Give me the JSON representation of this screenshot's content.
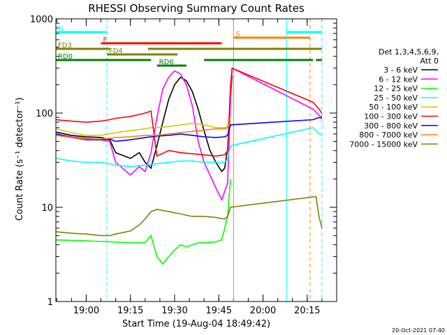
{
  "chart_data": {
    "type": "line",
    "title": "RHESSI Observing Summary Count Rates",
    "xlabel": "Start Time (19-Aug-04 18:49:42)",
    "ylabel": "Count Rate (s⁻¹ detector⁻¹)",
    "x_start": "18:49:42",
    "xlim": [
      "18:49:42",
      "20:25:00"
    ],
    "x_ticks": [
      "19:00",
      "19:15",
      "19:30",
      "19:45",
      "20:00",
      "20:15"
    ],
    "yscale": "log",
    "ylim": [
      1,
      1000
    ],
    "y_ticks": [
      {
        "value": 1,
        "label": "1"
      },
      {
        "value": 10,
        "label": "10"
      },
      {
        "value": 100,
        "label": "100"
      },
      {
        "value": 1000,
        "label": "1000"
      }
    ],
    "legend_header": [
      "Det 1,3,4,5,6,9,",
      "Att 0"
    ],
    "legend_position": "right",
    "timestamp": "20-Oct-2021 07:40",
    "series": [
      {
        "name": "3 - 6 keV",
        "color": "#000000",
        "points": [
          [
            "18:49:42",
            63
          ],
          [
            "18:55",
            58
          ],
          [
            "19:00",
            56
          ],
          [
            "19:05",
            55
          ],
          [
            "19:08",
            52
          ],
          [
            "19:10",
            38
          ],
          [
            "19:13",
            35
          ],
          [
            "19:15",
            33
          ],
          [
            "19:18",
            38
          ],
          [
            "19:20",
            30
          ],
          [
            "19:22",
            26
          ],
          [
            "19:24",
            45
          ],
          [
            "19:26",
            80
          ],
          [
            "19:28",
            140
          ],
          [
            "19:30",
            200
          ],
          [
            "19:32",
            240
          ],
          [
            "19:34",
            220
          ],
          [
            "19:36",
            170
          ],
          [
            "19:38",
            110
          ],
          [
            "19:40",
            65
          ],
          [
            "19:42",
            40
          ],
          [
            "19:44",
            30
          ],
          [
            "19:46",
            24
          ],
          [
            "19:47",
            26
          ],
          [
            "19:48",
            42
          ],
          [
            "19:49",
            150
          ],
          [
            "19:49:30",
            250
          ]
        ]
      },
      {
        "name": "6 - 12 keV",
        "color": "#ff00ff",
        "points": [
          [
            "18:49:42",
            60
          ],
          [
            "18:55",
            56
          ],
          [
            "19:00",
            54
          ],
          [
            "19:05",
            52
          ],
          [
            "19:08",
            50
          ],
          [
            "19:10",
            30
          ],
          [
            "19:13",
            25
          ],
          [
            "19:15",
            22
          ],
          [
            "19:18",
            27
          ],
          [
            "19:20",
            24
          ],
          [
            "19:22",
            38
          ],
          [
            "19:24",
            90
          ],
          [
            "19:26",
            180
          ],
          [
            "19:28",
            240
          ],
          [
            "19:30",
            280
          ],
          [
            "19:32",
            260
          ],
          [
            "19:34",
            200
          ],
          [
            "19:36",
            120
          ],
          [
            "19:38",
            50
          ],
          [
            "19:40",
            30
          ],
          [
            "19:42",
            22
          ],
          [
            "19:44",
            16
          ],
          [
            "19:46",
            12
          ],
          [
            "19:48",
            18
          ],
          [
            "19:49",
            140
          ],
          [
            "19:49:30",
            300
          ],
          [
            "20:17",
            110
          ],
          [
            "20:19",
            95
          ],
          [
            "20:20",
            90
          ]
        ]
      },
      {
        "name": "12 - 25 keV",
        "color": "#00ff00",
        "points": [
          [
            "18:49:42",
            4.5
          ],
          [
            "19:00",
            4.4
          ],
          [
            "19:08",
            4.3
          ],
          [
            "19:15",
            4.2
          ],
          [
            "19:20",
            4.2
          ],
          [
            "19:22",
            5
          ],
          [
            "19:24",
            3
          ],
          [
            "19:26",
            2.5
          ],
          [
            "19:28",
            3
          ],
          [
            "19:30",
            3.5
          ],
          [
            "19:32",
            4
          ],
          [
            "19:34",
            3.8
          ],
          [
            "19:36",
            4
          ],
          [
            "19:38",
            4.2
          ],
          [
            "19:40",
            4.2
          ],
          [
            "19:44",
            4.3
          ],
          [
            "19:46",
            4.5
          ],
          [
            "19:48",
            8
          ],
          [
            "19:49",
            20
          ]
        ]
      },
      {
        "name": "25 - 50 keV",
        "color": "#00ffff",
        "points": [
          [
            "18:49:42",
            33
          ],
          [
            "18:55",
            31
          ],
          [
            "19:00",
            30
          ],
          [
            "19:05",
            30
          ],
          [
            "19:08",
            29
          ],
          [
            "19:10",
            28
          ],
          [
            "19:15",
            27
          ],
          [
            "19:20",
            28
          ],
          [
            "19:24",
            29
          ],
          [
            "19:28",
            30
          ],
          [
            "19:32",
            31
          ],
          [
            "19:36",
            31
          ],
          [
            "19:40",
            30
          ],
          [
            "19:44",
            30
          ],
          [
            "19:47",
            30
          ],
          [
            "19:48",
            32
          ],
          [
            "19:49",
            45
          ],
          [
            "20:17",
            70
          ],
          [
            "20:19",
            60
          ],
          [
            "20:20",
            58
          ]
        ]
      },
      {
        "name": "50 - 100 keV",
        "color": "#cccc00",
        "points": [
          [
            "18:49:42",
            68
          ],
          [
            "18:55",
            62
          ],
          [
            "19:00",
            58
          ],
          [
            "19:05",
            58
          ],
          [
            "19:08",
            60
          ],
          [
            "19:10",
            62
          ],
          [
            "19:15",
            65
          ],
          [
            "19:20",
            68
          ],
          [
            "19:22",
            70
          ],
          [
            "19:24",
            70
          ],
          [
            "19:28",
            72
          ],
          [
            "19:32",
            75
          ],
          [
            "19:36",
            78
          ],
          [
            "19:40",
            75
          ],
          [
            "19:44",
            70
          ],
          [
            "19:47",
            70
          ],
          [
            "19:48",
            72
          ],
          [
            "19:49",
            90
          ]
        ]
      },
      {
        "name": "100 - 300 keV",
        "color": "#ff0000",
        "points": [
          [
            "18:49:42",
            85
          ],
          [
            "18:55",
            82
          ],
          [
            "19:00",
            80
          ],
          [
            "19:05",
            82
          ],
          [
            "19:08",
            85
          ],
          [
            "19:10",
            88
          ],
          [
            "19:15",
            92
          ],
          [
            "19:20",
            100
          ],
          [
            "19:22",
            105
          ],
          [
            "19:24",
            35
          ],
          [
            "19:28",
            40
          ],
          [
            "19:32",
            38
          ],
          [
            "19:36",
            37
          ],
          [
            "19:40",
            36
          ],
          [
            "19:44",
            35
          ],
          [
            "19:47",
            36
          ],
          [
            "19:48",
            40
          ],
          [
            "19:49",
            200
          ],
          [
            "19:49:30",
            300
          ],
          [
            "20:17",
            130
          ],
          [
            "20:19",
            110
          ],
          [
            "20:20",
            100
          ]
        ]
      },
      {
        "name": "300 - 800 keV",
        "color": "#0000ff",
        "points": [
          [
            "18:49:42",
            60
          ],
          [
            "18:55",
            55
          ],
          [
            "19:00",
            52
          ],
          [
            "19:05",
            52
          ],
          [
            "19:08",
            53
          ],
          [
            "19:10",
            50
          ],
          [
            "19:15",
            52
          ],
          [
            "19:20",
            55
          ],
          [
            "19:24",
            57
          ],
          [
            "19:28",
            58
          ],
          [
            "19:32",
            60
          ],
          [
            "19:36",
            58
          ],
          [
            "19:40",
            56
          ],
          [
            "19:44",
            55
          ],
          [
            "19:47",
            56
          ],
          [
            "19:48",
            58
          ],
          [
            "19:49",
            75
          ],
          [
            "20:17",
            85
          ],
          [
            "20:19",
            90
          ],
          [
            "20:20",
            88
          ]
        ]
      },
      {
        "name": "800 - 7000 keV",
        "color": "#ff8000",
        "points": [
          [
            "18:49:42",
            58
          ],
          [
            "18:55",
            55
          ],
          [
            "19:00",
            53
          ],
          [
            "19:05",
            53
          ],
          [
            "19:08",
            54
          ],
          [
            "19:10",
            55
          ],
          [
            "19:15",
            56
          ],
          [
            "19:20",
            58
          ],
          [
            "19:24",
            58
          ],
          [
            "19:28",
            60
          ],
          [
            "19:32",
            62
          ],
          [
            "19:36",
            64
          ],
          [
            "19:40",
            66
          ],
          [
            "19:44",
            68
          ],
          [
            "19:47",
            68
          ],
          [
            "19:48",
            70
          ],
          [
            "19:49",
            80
          ]
        ]
      },
      {
        "name": "7000 - 15000 keV",
        "color": "#808000",
        "points": [
          [
            "18:49:42",
            5.5
          ],
          [
            "18:55",
            5.3
          ],
          [
            "19:00",
            5.2
          ],
          [
            "19:05",
            5.0
          ],
          [
            "19:08",
            5.0
          ],
          [
            "19:10",
            5.2
          ],
          [
            "19:15",
            5.6
          ],
          [
            "19:18",
            6.5
          ],
          [
            "19:20",
            7.5
          ],
          [
            "19:22",
            9
          ],
          [
            "19:24",
            9.5
          ],
          [
            "19:28",
            9
          ],
          [
            "19:32",
            8.5
          ],
          [
            "19:36",
            8
          ],
          [
            "19:40",
            8
          ],
          [
            "19:44",
            7.8
          ],
          [
            "19:47",
            7.5
          ],
          [
            "19:48",
            8
          ],
          [
            "19:49",
            10
          ],
          [
            "20:18",
            13
          ],
          [
            "20:19",
            8
          ],
          [
            "20:20",
            6
          ]
        ]
      }
    ],
    "flag_bars": [
      {
        "label": "N",
        "color": "#00ffff",
        "segments": [
          [
            "18:49:42",
            "19:07"
          ],
          [
            "20:08",
            "20:20"
          ]
        ]
      },
      {
        "label": "S",
        "color": "#ff8000",
        "segments": [
          [
            "19:50",
            "20:16"
          ]
        ]
      },
      {
        "label": "F",
        "color": "#ff0000",
        "segments": [
          [
            "19:05",
            "19:46"
          ]
        ]
      },
      {
        "label": "FD3",
        "color": "#808000",
        "segments": [
          [
            "18:49:42",
            "19:08"
          ],
          [
            "19:21",
            "20:20"
          ]
        ]
      },
      {
        "label": "FD4",
        "color": "#808000",
        "segments": [
          [
            "19:07",
            "19:31"
          ]
        ]
      },
      {
        "label": "RD0",
        "color": "#008000",
        "segments": [
          [
            "18:49:42",
            "19:22"
          ],
          [
            "19:40",
            "20:17"
          ],
          [
            "20:18",
            "20:20"
          ]
        ]
      },
      {
        "label": "RD6",
        "color": "#008000",
        "segments": [
          [
            "19:24",
            "19:34"
          ]
        ]
      }
    ],
    "vertical_markers": [
      {
        "time": "19:07",
        "color": "#00ffff",
        "style": "dashed"
      },
      {
        "time": "19:50",
        "color": "#ff8000",
        "style": "solid"
      },
      {
        "time": "20:08",
        "color": "#00ffff",
        "style": "solid"
      },
      {
        "time": "20:16",
        "color": "#ff8000",
        "style": "dashed"
      },
      {
        "time": "20:20",
        "color": "#00ffff",
        "style": "dashed"
      }
    ]
  }
}
